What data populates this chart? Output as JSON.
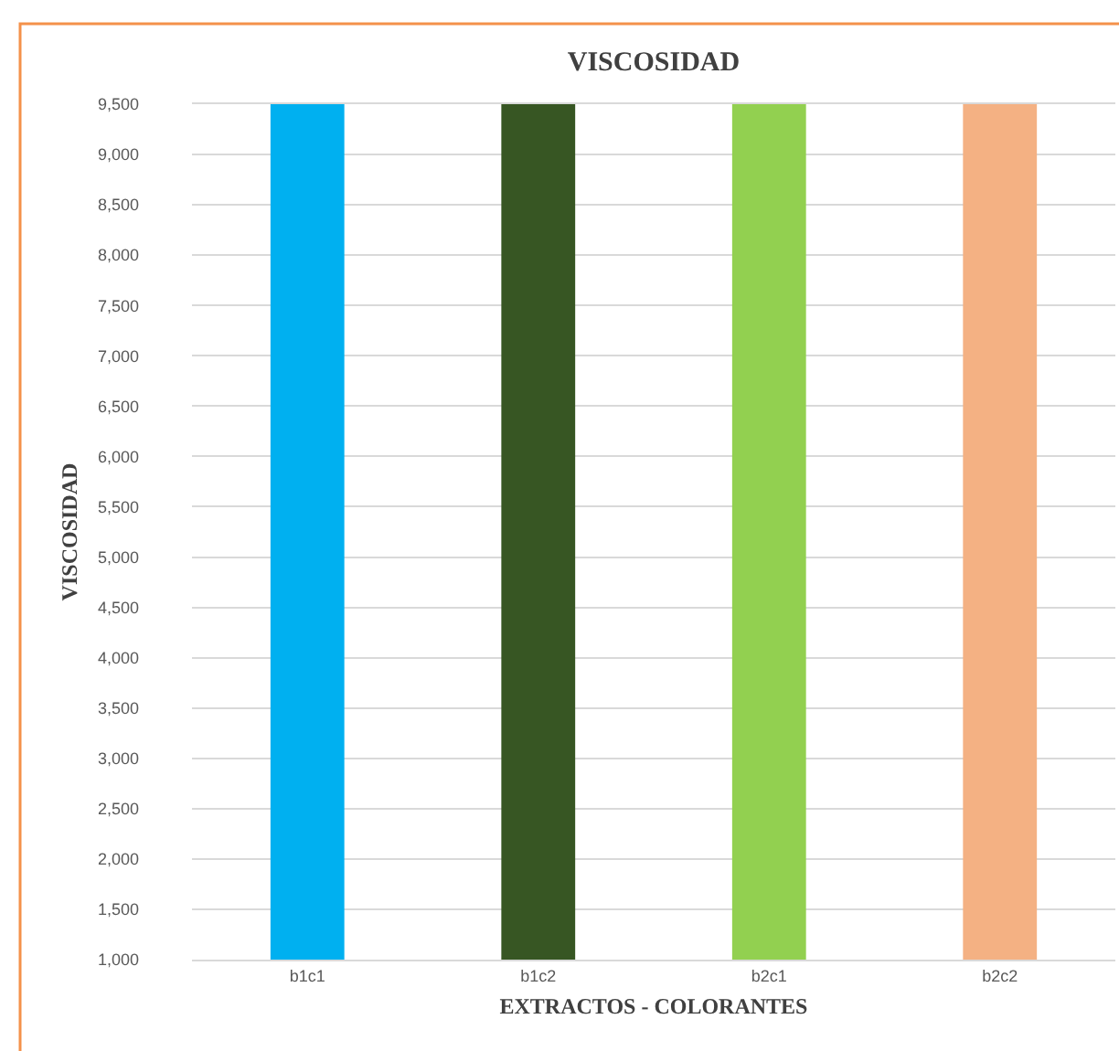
{
  "chart_data": {
    "type": "bar",
    "title": "VISCOSIDAD",
    "xlabel": "EXTRACTOS - COLORANTES",
    "ylabel": "VISCOSIDAD",
    "categories": [
      "b1c1",
      "b1c2",
      "b2c1",
      "b2c2"
    ],
    "values": [
      9500,
      9500,
      9500,
      9500
    ],
    "colors": [
      "#00b0f0",
      "#375623",
      "#92d050",
      "#f4b183"
    ],
    "ylim": [
      1000,
      9500
    ],
    "yticks": [
      {
        "value": 1000,
        "label": "1,000"
      },
      {
        "value": 1500,
        "label": "1,500"
      },
      {
        "value": 2000,
        "label": "2,000"
      },
      {
        "value": 2500,
        "label": "2,500"
      },
      {
        "value": 3000,
        "label": "3,000"
      },
      {
        "value": 3500,
        "label": "3,500"
      },
      {
        "value": 4000,
        "label": "4,000"
      },
      {
        "value": 4500,
        "label": "4,500"
      },
      {
        "value": 5000,
        "label": "5,000"
      },
      {
        "value": 5500,
        "label": "5,500"
      },
      {
        "value": 6000,
        "label": "6,000"
      },
      {
        "value": 6500,
        "label": "6,500"
      },
      {
        "value": 7000,
        "label": "7,000"
      },
      {
        "value": 7500,
        "label": "7,500"
      },
      {
        "value": 8000,
        "label": "8,000"
      },
      {
        "value": 8500,
        "label": "8,500"
      },
      {
        "value": 9000,
        "label": "9,000"
      },
      {
        "value": 9500,
        "label": "9,500"
      }
    ],
    "grid": "y"
  }
}
